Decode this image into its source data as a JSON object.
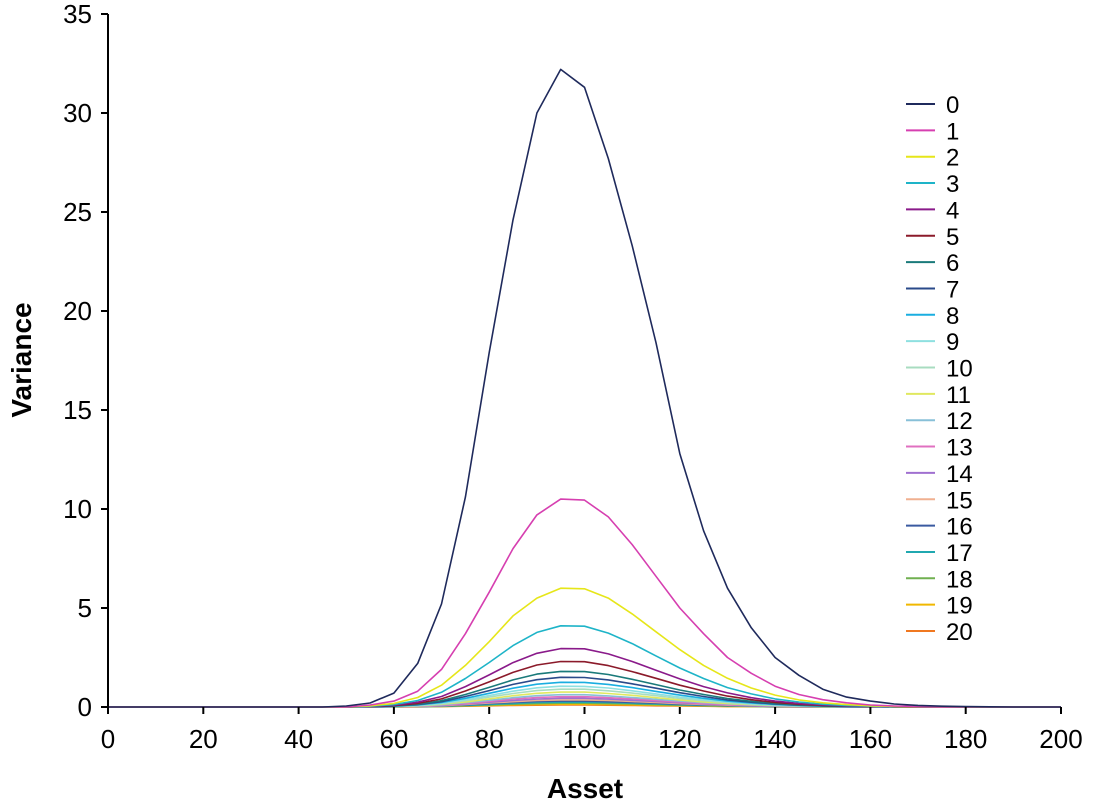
{
  "chart_data": {
    "type": "line",
    "title": "",
    "xlabel": "Asset",
    "ylabel": "Variance",
    "xlim": [
      0,
      200
    ],
    "ylim": [
      0,
      35
    ],
    "xticks": [
      0,
      20,
      40,
      60,
      80,
      100,
      120,
      140,
      160,
      180,
      200
    ],
    "yticks": [
      0,
      5,
      10,
      15,
      20,
      25,
      30,
      35
    ],
    "grid": false,
    "legend_position": "right",
    "x": [
      0,
      5,
      10,
      15,
      20,
      25,
      30,
      35,
      40,
      45,
      50,
      55,
      60,
      65,
      70,
      75,
      80,
      85,
      90,
      95,
      100,
      105,
      110,
      115,
      120,
      125,
      130,
      135,
      140,
      145,
      150,
      155,
      160,
      165,
      170,
      175,
      180,
      185,
      190,
      195,
      200
    ],
    "series": [
      {
        "name": "0",
        "color": "#1f2a5c",
        "values": [
          0,
          0,
          0,
          0,
          0,
          0,
          0,
          0,
          0,
          0,
          0.05,
          0.2,
          0.7,
          2.2,
          5.2,
          10.6,
          17.9,
          24.6,
          30.0,
          32.2,
          31.3,
          27.7,
          23.3,
          18.4,
          12.8,
          8.9,
          6.0,
          4.0,
          2.5,
          1.6,
          0.9,
          0.5,
          0.3,
          0.15,
          0.08,
          0.04,
          0.02,
          0.01,
          0,
          0,
          0
        ]
      },
      {
        "name": "1",
        "color": "#d63fb0",
        "values": [
          0,
          0,
          0,
          0,
          0,
          0,
          0,
          0,
          0,
          0,
          0,
          0.1,
          0.3,
          0.8,
          1.9,
          3.7,
          5.8,
          8.0,
          9.7,
          10.5,
          10.45,
          9.6,
          8.2,
          6.6,
          5.0,
          3.7,
          2.5,
          1.7,
          1.05,
          0.63,
          0.37,
          0.21,
          0.1,
          0.05,
          0.02,
          0,
          0,
          0,
          0,
          0,
          0
        ]
      },
      {
        "name": "2",
        "color": "#e6e619",
        "values": [
          0,
          0,
          0,
          0,
          0,
          0,
          0,
          0,
          0,
          0,
          0,
          0.06,
          0.18,
          0.48,
          1.1,
          2.1,
          3.3,
          4.6,
          5.5,
          6.0,
          5.97,
          5.5,
          4.7,
          3.8,
          2.9,
          2.1,
          1.45,
          0.96,
          0.6,
          0.36,
          0.21,
          0.12,
          0.06,
          0.03,
          0.01,
          0,
          0,
          0,
          0,
          0,
          0
        ]
      },
      {
        "name": "3",
        "color": "#1eb4c8",
        "values": [
          0,
          0,
          0,
          0,
          0,
          0,
          0,
          0,
          0,
          0,
          0,
          0.04,
          0.12,
          0.33,
          0.74,
          1.44,
          2.25,
          3.1,
          3.77,
          4.1,
          4.08,
          3.73,
          3.2,
          2.58,
          1.97,
          1.44,
          0.98,
          0.66,
          0.41,
          0.25,
          0.14,
          0.08,
          0.04,
          0.02,
          0.01,
          0,
          0,
          0,
          0,
          0,
          0
        ]
      },
      {
        "name": "4",
        "color": "#8a1a8a",
        "values": [
          0,
          0,
          0,
          0,
          0,
          0,
          0,
          0,
          0,
          0,
          0,
          0.03,
          0.09,
          0.24,
          0.53,
          1.03,
          1.62,
          2.24,
          2.71,
          2.95,
          2.94,
          2.68,
          2.3,
          1.86,
          1.42,
          1.03,
          0.71,
          0.47,
          0.3,
          0.18,
          0.1,
          0.06,
          0.03,
          0.01,
          0,
          0,
          0,
          0,
          0,
          0,
          0
        ]
      },
      {
        "name": "5",
        "color": "#8b1a2a",
        "values": [
          0,
          0,
          0,
          0,
          0,
          0,
          0,
          0,
          0,
          0,
          0,
          0.02,
          0.07,
          0.18,
          0.41,
          0.81,
          1.27,
          1.75,
          2.12,
          2.3,
          2.29,
          2.09,
          1.79,
          1.45,
          1.1,
          0.81,
          0.55,
          0.37,
          0.23,
          0.14,
          0.08,
          0.05,
          0.02,
          0.01,
          0,
          0,
          0,
          0,
          0,
          0,
          0
        ]
      },
      {
        "name": "6",
        "color": "#1a7a7a",
        "values": [
          0,
          0,
          0,
          0,
          0,
          0,
          0,
          0,
          0,
          0,
          0,
          0.02,
          0.05,
          0.14,
          0.32,
          0.63,
          0.99,
          1.37,
          1.66,
          1.8,
          1.79,
          1.64,
          1.4,
          1.13,
          0.86,
          0.63,
          0.43,
          0.29,
          0.18,
          0.11,
          0.06,
          0.04,
          0.02,
          0.01,
          0,
          0,
          0,
          0,
          0,
          0,
          0
        ]
      },
      {
        "name": "7",
        "color": "#2a4a8a",
        "values": [
          0,
          0,
          0,
          0,
          0,
          0,
          0,
          0,
          0,
          0,
          0,
          0.02,
          0.05,
          0.12,
          0.27,
          0.53,
          0.83,
          1.14,
          1.38,
          1.5,
          1.49,
          1.37,
          1.17,
          0.95,
          0.72,
          0.53,
          0.36,
          0.24,
          0.15,
          0.09,
          0.05,
          0.03,
          0.02,
          0.01,
          0,
          0,
          0,
          0,
          0,
          0,
          0
        ]
      },
      {
        "name": "8",
        "color": "#1aaee0",
        "values": [
          0,
          0,
          0,
          0,
          0,
          0,
          0,
          0,
          0,
          0,
          0,
          0.01,
          0.04,
          0.1,
          0.23,
          0.44,
          0.69,
          0.95,
          1.15,
          1.25,
          1.24,
          1.14,
          0.98,
          0.79,
          0.6,
          0.44,
          0.3,
          0.2,
          0.13,
          0.08,
          0.04,
          0.03,
          0.01,
          0,
          0,
          0,
          0,
          0,
          0,
          0,
          0
        ]
      },
      {
        "name": "9",
        "color": "#8ee0e0",
        "values": [
          0,
          0,
          0,
          0,
          0,
          0,
          0,
          0,
          0,
          0,
          0,
          0.01,
          0.03,
          0.08,
          0.19,
          0.37,
          0.58,
          0.8,
          0.97,
          1.05,
          1.04,
          0.96,
          0.82,
          0.66,
          0.5,
          0.37,
          0.25,
          0.17,
          0.11,
          0.06,
          0.04,
          0.02,
          0.01,
          0,
          0,
          0,
          0,
          0,
          0,
          0,
          0
        ]
      },
      {
        "name": "10",
        "color": "#a8dcc0",
        "values": [
          0,
          0,
          0,
          0,
          0,
          0,
          0,
          0,
          0,
          0,
          0,
          0.01,
          0.03,
          0.07,
          0.16,
          0.32,
          0.5,
          0.68,
          0.83,
          0.9,
          0.9,
          0.82,
          0.7,
          0.57,
          0.43,
          0.32,
          0.22,
          0.14,
          0.09,
          0.05,
          0.03,
          0.02,
          0.01,
          0,
          0,
          0,
          0,
          0,
          0,
          0,
          0
        ]
      },
      {
        "name": "11",
        "color": "#e0e860",
        "values": [
          0,
          0,
          0,
          0,
          0,
          0,
          0,
          0,
          0,
          0,
          0,
          0.01,
          0.02,
          0.06,
          0.14,
          0.26,
          0.41,
          0.57,
          0.69,
          0.75,
          0.75,
          0.68,
          0.59,
          0.47,
          0.36,
          0.26,
          0.18,
          0.12,
          0.08,
          0.05,
          0.03,
          0.02,
          0.01,
          0,
          0,
          0,
          0,
          0,
          0,
          0,
          0
        ]
      },
      {
        "name": "12",
        "color": "#88c0d8",
        "values": [
          0,
          0,
          0,
          0,
          0,
          0,
          0,
          0,
          0,
          0,
          0,
          0.01,
          0.02,
          0.05,
          0.11,
          0.22,
          0.34,
          0.47,
          0.57,
          0.62,
          0.62,
          0.56,
          0.48,
          0.39,
          0.3,
          0.22,
          0.15,
          0.1,
          0.06,
          0.04,
          0.02,
          0.01,
          0.01,
          0,
          0,
          0,
          0,
          0,
          0,
          0,
          0
        ]
      },
      {
        "name": "13",
        "color": "#e070c0",
        "values": [
          0,
          0,
          0,
          0,
          0,
          0,
          0,
          0,
          0,
          0,
          0,
          0.01,
          0.02,
          0.04,
          0.09,
          0.18,
          0.29,
          0.4,
          0.48,
          0.52,
          0.52,
          0.47,
          0.41,
          0.33,
          0.25,
          0.18,
          0.12,
          0.08,
          0.05,
          0.03,
          0.02,
          0.01,
          0.01,
          0,
          0,
          0,
          0,
          0,
          0,
          0,
          0
        ]
      },
      {
        "name": "14",
        "color": "#a070d0",
        "values": [
          0,
          0,
          0,
          0,
          0,
          0,
          0,
          0,
          0,
          0,
          0,
          0,
          0.01,
          0.04,
          0.08,
          0.15,
          0.24,
          0.33,
          0.4,
          0.44,
          0.44,
          0.4,
          0.34,
          0.28,
          0.21,
          0.15,
          0.11,
          0.07,
          0.04,
          0.03,
          0.02,
          0.01,
          0,
          0,
          0,
          0,
          0,
          0,
          0,
          0,
          0
        ]
      },
      {
        "name": "15",
        "color": "#f0b090",
        "values": [
          0,
          0,
          0,
          0,
          0,
          0,
          0,
          0,
          0,
          0,
          0,
          0,
          0.01,
          0.03,
          0.06,
          0.13,
          0.2,
          0.27,
          0.33,
          0.36,
          0.36,
          0.33,
          0.28,
          0.23,
          0.17,
          0.13,
          0.09,
          0.06,
          0.04,
          0.02,
          0.01,
          0.01,
          0,
          0,
          0,
          0,
          0,
          0,
          0,
          0,
          0
        ]
      },
      {
        "name": "16",
        "color": "#3a5aa0",
        "values": [
          0,
          0,
          0,
          0,
          0,
          0,
          0,
          0,
          0,
          0,
          0,
          0,
          0.01,
          0.02,
          0.05,
          0.11,
          0.17,
          0.23,
          0.28,
          0.3,
          0.3,
          0.27,
          0.23,
          0.19,
          0.14,
          0.11,
          0.07,
          0.05,
          0.03,
          0.02,
          0.01,
          0.01,
          0,
          0,
          0,
          0,
          0,
          0,
          0,
          0,
          0
        ]
      },
      {
        "name": "17",
        "color": "#20a8b0",
        "values": [
          0,
          0,
          0,
          0,
          0,
          0,
          0,
          0,
          0,
          0,
          0,
          0,
          0.01,
          0.02,
          0.04,
          0.08,
          0.13,
          0.18,
          0.22,
          0.24,
          0.24,
          0.22,
          0.19,
          0.15,
          0.12,
          0.08,
          0.06,
          0.04,
          0.02,
          0.01,
          0.01,
          0,
          0,
          0,
          0,
          0,
          0,
          0,
          0,
          0,
          0
        ]
      },
      {
        "name": "18",
        "color": "#70b050",
        "values": [
          0,
          0,
          0,
          0,
          0,
          0,
          0,
          0,
          0,
          0,
          0,
          0,
          0.01,
          0.02,
          0.03,
          0.07,
          0.1,
          0.14,
          0.17,
          0.19,
          0.19,
          0.17,
          0.15,
          0.12,
          0.09,
          0.07,
          0.05,
          0.03,
          0.02,
          0.01,
          0.01,
          0,
          0,
          0,
          0,
          0,
          0,
          0,
          0,
          0,
          0
        ]
      },
      {
        "name": "19",
        "color": "#f0b800",
        "values": [
          0,
          0,
          0,
          0,
          0,
          0,
          0,
          0,
          0,
          0,
          0,
          0,
          0,
          0.01,
          0.03,
          0.05,
          0.08,
          0.11,
          0.13,
          0.14,
          0.14,
          0.13,
          0.11,
          0.09,
          0.07,
          0.05,
          0.03,
          0.02,
          0.01,
          0.01,
          0,
          0,
          0,
          0,
          0,
          0,
          0,
          0,
          0,
          0,
          0
        ]
      },
      {
        "name": "20",
        "color": "#f07820",
        "values": [
          0,
          0,
          0,
          0,
          0,
          0,
          0,
          0,
          0,
          0,
          0,
          0,
          0,
          0.01,
          0.02,
          0.04,
          0.06,
          0.08,
          0.09,
          0.1,
          0.1,
          0.09,
          0.08,
          0.06,
          0.05,
          0.04,
          0.02,
          0.02,
          0.01,
          0,
          0,
          0,
          0,
          0,
          0,
          0,
          0,
          0,
          0,
          0,
          0
        ]
      }
    ]
  }
}
